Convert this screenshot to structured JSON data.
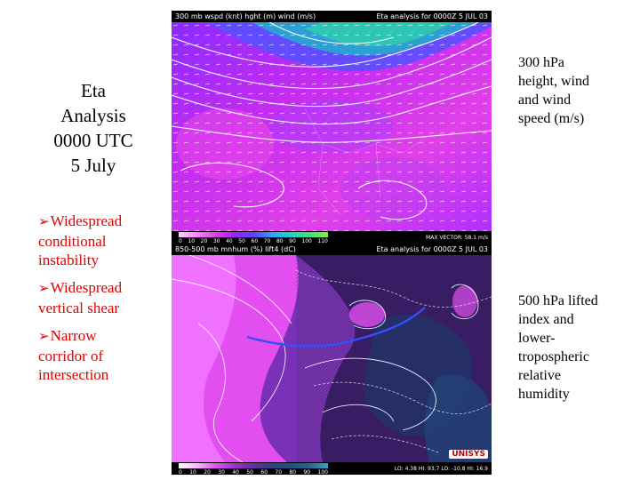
{
  "title": {
    "line1": "Eta",
    "line2": "Analysis",
    "line3": "0000 UTC",
    "line4": "5 July"
  },
  "bullets": [
    {
      "line1": "Widespread",
      "line2": "conditional",
      "line3": "instability"
    },
    {
      "line1": "Widespread",
      "line2": "vertical shear"
    },
    {
      "line1": "Narrow",
      "line2": "corridor of",
      "line3": "intersection"
    }
  ],
  "captions": {
    "upper": {
      "line1": "300 hPa",
      "line2": "height, wind",
      "line3": "and wind",
      "line4": "speed (m/s)"
    },
    "lower": {
      "line1": "500 hPa lifted",
      "line2": "index and",
      "line3": "lower-",
      "line4": "tropospheric",
      "line5": "relative",
      "line6": "humidity"
    }
  },
  "map_upper": {
    "header_left": "300 mb wspd (knt) hght (m) wind (m/s)",
    "header_right": "Eta analysis for 0000Z  5 JUL 03",
    "scale_ticks": [
      "0",
      "10",
      "20",
      "30",
      "40",
      "50",
      "60",
      "70",
      "80",
      "90",
      "100",
      "110"
    ],
    "max_vector": "MAX VECTOR: 58.1 m/s"
  },
  "map_lower": {
    "header_left": "850-500 mb mnhum (%) lift4 (dC)",
    "header_right": "Eta analysis for 0000Z  5 JUL 03",
    "scale_ticks": [
      "0",
      "10",
      "20",
      "30",
      "40",
      "50",
      "60",
      "70",
      "80",
      "90",
      "100"
    ],
    "info": "LO: 4.38  HI: 93.7  LO: -10.8  HI: 16.9",
    "logo": "UNISYS"
  },
  "colors": {
    "bullet_text": "#e00000",
    "arrow_marker": "#e00000",
    "map_magenta": "#c000ff",
    "map_jet": "#20c0a0",
    "contour": "#ffffff"
  },
  "icons": {
    "bullet_marker": "arrow-right-icon"
  }
}
